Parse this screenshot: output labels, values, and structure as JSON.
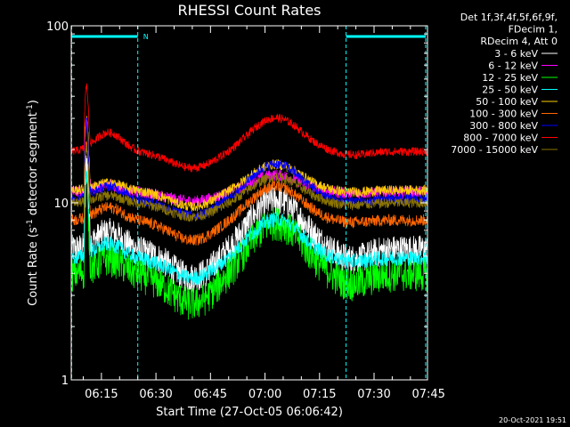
{
  "chart_data": {
    "type": "line",
    "title": "RHESSI Count Rates",
    "xlabel": "Start Time (27-Oct-05 06:06:42)",
    "ylabel_main": "Count Rate (s",
    "ylabel_sup1": "-1",
    "ylabel_mid": " detector segment",
    "ylabel_sup2": "-1",
    "ylabel_end": ")",
    "y_scale": "log",
    "ylim": [
      1,
      100
    ],
    "xlim_minutes": [
      6.7,
      104.7
    ],
    "x_ticks": [
      {
        "label": "06:15",
        "min": 15
      },
      {
        "label": "06:30",
        "min": 30
      },
      {
        "label": "06:45",
        "min": 45
      },
      {
        "label": "07:00",
        "min": 60
      },
      {
        "label": "07:15",
        "min": 75
      },
      {
        "label": "07:30",
        "min": 90
      },
      {
        "label": "07:45",
        "min": 105
      }
    ],
    "y_ticks": [
      {
        "label": "100",
        "value": 100
      },
      {
        "label": "10",
        "value": 10
      },
      {
        "label": "1",
        "value": 1
      }
    ],
    "header_lines": [
      "Det 1f,3f,4f,5f,6f,9f,",
      "FDecim 1,",
      "RDecim 4, Att 0"
    ],
    "legend_placement": "top-right",
    "series": [
      {
        "name": "3 - 6 keV",
        "color": "#ffffff",
        "base": 5.5,
        "amp": 0.55,
        "early": 0.25,
        "peak": 0.9,
        "tail": 0.4,
        "spike": 3.0,
        "noise": 0.09
      },
      {
        "name": "6 - 12 keV",
        "color": "#ff00ff",
        "base": 11.5,
        "amp": 0.2,
        "early": 0.1,
        "peak": 0.25,
        "tail": 0.05,
        "spike": 2.5,
        "noise": 0.035
      },
      {
        "name": "12 - 25 keV",
        "color": "#00ff00",
        "base": 4.0,
        "amp": 0.58,
        "early": 0.22,
        "peak": 0.95,
        "tail": 0.4,
        "spike": 3.2,
        "noise": 0.1
      },
      {
        "name": "25 - 50 keV",
        "color": "#00ffff",
        "base": 4.9,
        "amp": 0.42,
        "early": 0.2,
        "peak": 0.65,
        "tail": 0.15,
        "spike": 2.8,
        "noise": 0.045
      },
      {
        "name": "50 - 100 keV",
        "color": "#ffcc00",
        "base": 11.8,
        "amp": 0.35,
        "early": 0.1,
        "peak": 0.4,
        "tail": 0.08,
        "spike": 2.6,
        "noise": 0.03
      },
      {
        "name": "100 - 300 keV",
        "color": "#ff6600",
        "base": 8.0,
        "amp": 0.42,
        "early": 0.18,
        "peak": 0.55,
        "tail": 0.1,
        "spike": 2.6,
        "noise": 0.035
      },
      {
        "name": "300 - 800 keV",
        "color": "#0000ff",
        "base": 10.5,
        "amp": 0.35,
        "early": 0.18,
        "peak": 0.58,
        "tail": 0.15,
        "spike": 2.7,
        "noise": 0.03
      },
      {
        "name": "800 - 7000 keV",
        "color": "#ff0000",
        "base": 19.5,
        "amp": 0.35,
        "early": 0.28,
        "peak": 0.55,
        "tail": 0.15,
        "spike": 2.2,
        "noise": 0.025
      },
      {
        "name": "7000 - 15000 keV",
        "color": "#8b7500",
        "base": 10.0,
        "amp": 0.3,
        "early": 0.1,
        "peak": 0.4,
        "tail": 0.1,
        "spike": 2.0,
        "noise": 0.03
      }
    ],
    "regions": [
      {
        "label": "N",
        "start_min": 6.8,
        "end_min": 25.0
      },
      {
        "label": "",
        "start_min": 82.3,
        "end_min": 104.2
      }
    ],
    "footer_timestamp": "20-Oct-2021 19:51"
  },
  "colors": {
    "background": "#000000",
    "foreground": "#ffffff",
    "region": "#00ffff"
  }
}
